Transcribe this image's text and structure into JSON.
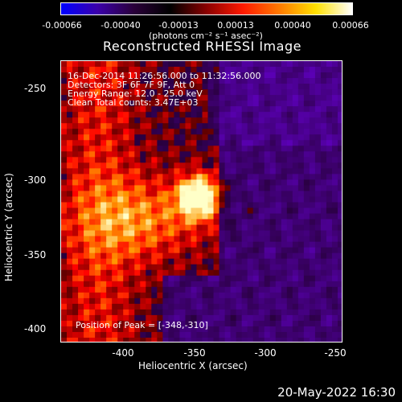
{
  "colorbar": {
    "ticks": [
      "-0.00066",
      "-0.00040",
      "-0.00013",
      "0.00013",
      "0.00040",
      "0.00066"
    ],
    "units": "(photons cm⁻² s⁻¹ asec⁻²)",
    "colors": [
      "#0000ff",
      "#3b00aa",
      "#2a003a",
      "#000000",
      "#8a0000",
      "#ff1a00",
      "#ff7a00",
      "#ffe000",
      "#ffffff"
    ]
  },
  "title": "Reconstructed RHESSI Image",
  "overlay": {
    "line1": "16-Dec-2014 11:26:56.000 to 11:32:56.000",
    "line2": "Detectors: 3F 6F 7F 9F, Att 0",
    "line3": "Energy Range: 12.0 - 25.0 keV",
    "line4": "Clean     Total counts: 3.47E+03",
    "peak": "Position of Peak = [-348,-310]"
  },
  "axes": {
    "xlabel": "Heliocentric X (arcsec)",
    "ylabel": "Heliocentric Y (arcsec)",
    "xticks": [
      "-400",
      "-350",
      "-300",
      "-250"
    ],
    "yticks": [
      "-250",
      "-300",
      "-350",
      "-400"
    ]
  },
  "footer": {
    "timestamp": "20-May-2022 16:30"
  }
}
